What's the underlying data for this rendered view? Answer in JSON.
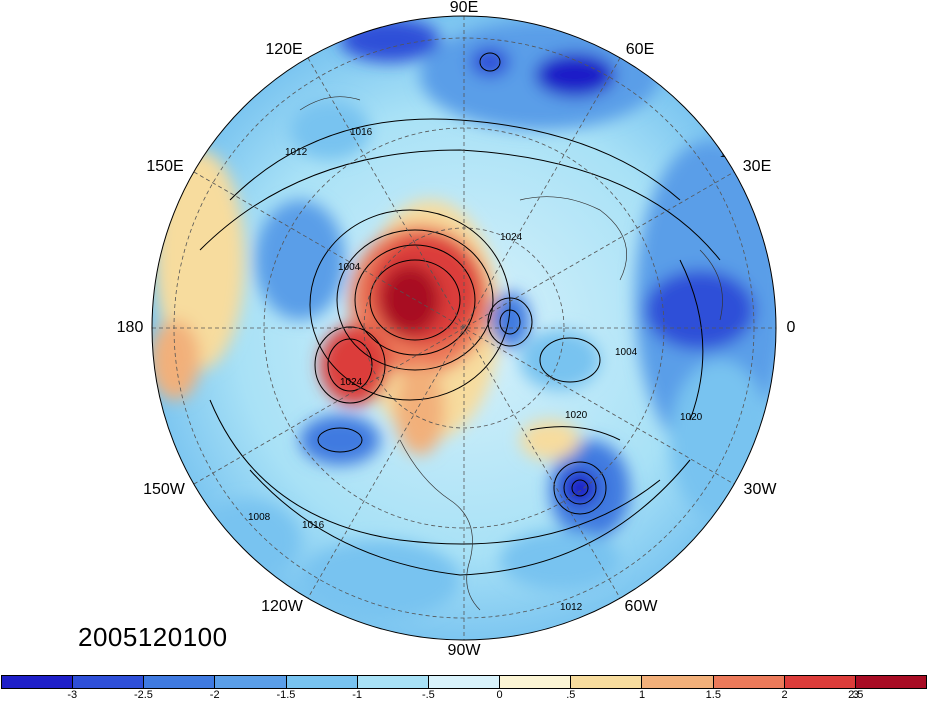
{
  "date_label": "2005120100",
  "longitude_labels": [
    "90E",
    "60E",
    "30E",
    "0",
    "30W",
    "60W",
    "90W",
    "120W",
    "150W",
    "180",
    "150E",
    "120E"
  ],
  "contour_labels": [
    "1016",
    "1012",
    "1008",
    "1004",
    "1020",
    "1024"
  ],
  "colorbar": {
    "ticks": [
      "-3",
      "-2.5",
      "-2",
      "-1.5",
      "-1",
      "-.5",
      "0",
      ".5",
      "1",
      "1.5",
      "2",
      "2.5",
      "3"
    ],
    "colors": [
      "#1e1fc8",
      "#2e4fd8",
      "#3f7ae0",
      "#5a9ee8",
      "#78c3f0",
      "#a8e1f6",
      "#d8f2fb",
      "#fbf4d4",
      "#f7dc9e",
      "#f2b07a",
      "#ec7a5a",
      "#dc3c3a",
      "#a80c24"
    ]
  }
}
